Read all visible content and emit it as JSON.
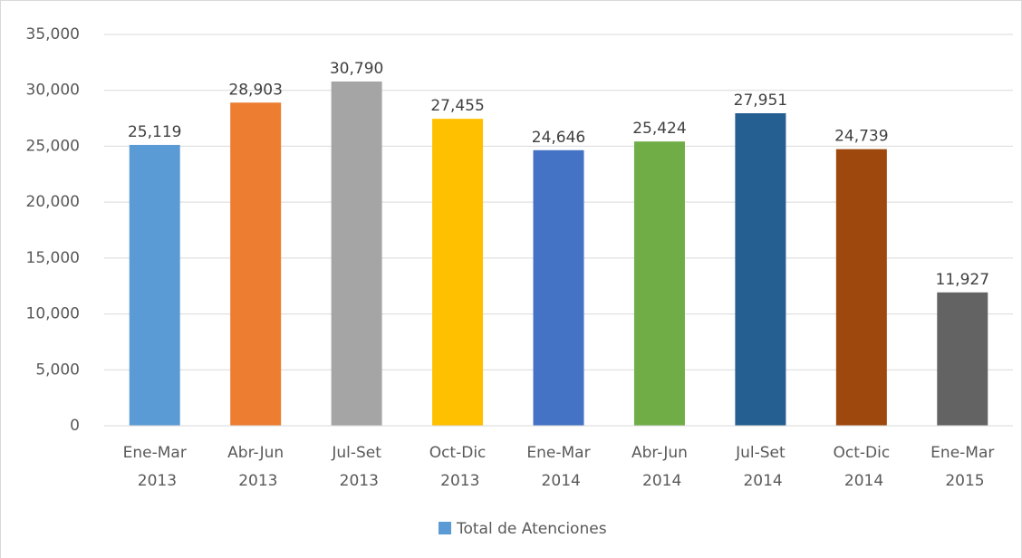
{
  "chart_data": {
    "type": "bar",
    "categories": [
      "Ene-Mar 2013",
      "Abr-Jun 2013",
      "Jul-Set 2013",
      "Oct-Dic 2013",
      "Ene-Mar 2014",
      "Abr-Jun 2014",
      "Jul-Set 2014",
      "Oct-Dic 2014",
      "Ene-Mar 2015"
    ],
    "series": [
      {
        "name": "Total de Atenciones",
        "color": "#5b9bd5",
        "values": [
          25119,
          28903,
          30790,
          27455,
          24646,
          25424,
          27951,
          24739,
          11927
        ],
        "value_labels": [
          "25,119",
          "28,903",
          "30,790",
          "27,455",
          "24,646",
          "25,424",
          "27,951",
          "24,739",
          "11,927"
        ],
        "colors": [
          "#5b9bd5",
          "#ed7d31",
          "#a5a5a5",
          "#ffc000",
          "#4472c4",
          "#70ad47",
          "#255e91",
          "#9e480e",
          "#636363"
        ]
      }
    ],
    "ylim": [
      0,
      35000
    ],
    "yticks": [
      0,
      {
        "value": 5000,
        "label": "5,000"
      },
      {
        "value": 10000,
        "label": "10,000"
      },
      {
        "value": 15000,
        "label": "15,000"
      },
      {
        "value": 20000,
        "label": "20,000"
      },
      {
        "value": 25000,
        "label": "25,000"
      },
      {
        "value": 30000,
        "label": "30,000"
      },
      {
        "value": 35000,
        "label": "35,000"
      }
    ],
    "grid": true,
    "legend": "bottom"
  }
}
